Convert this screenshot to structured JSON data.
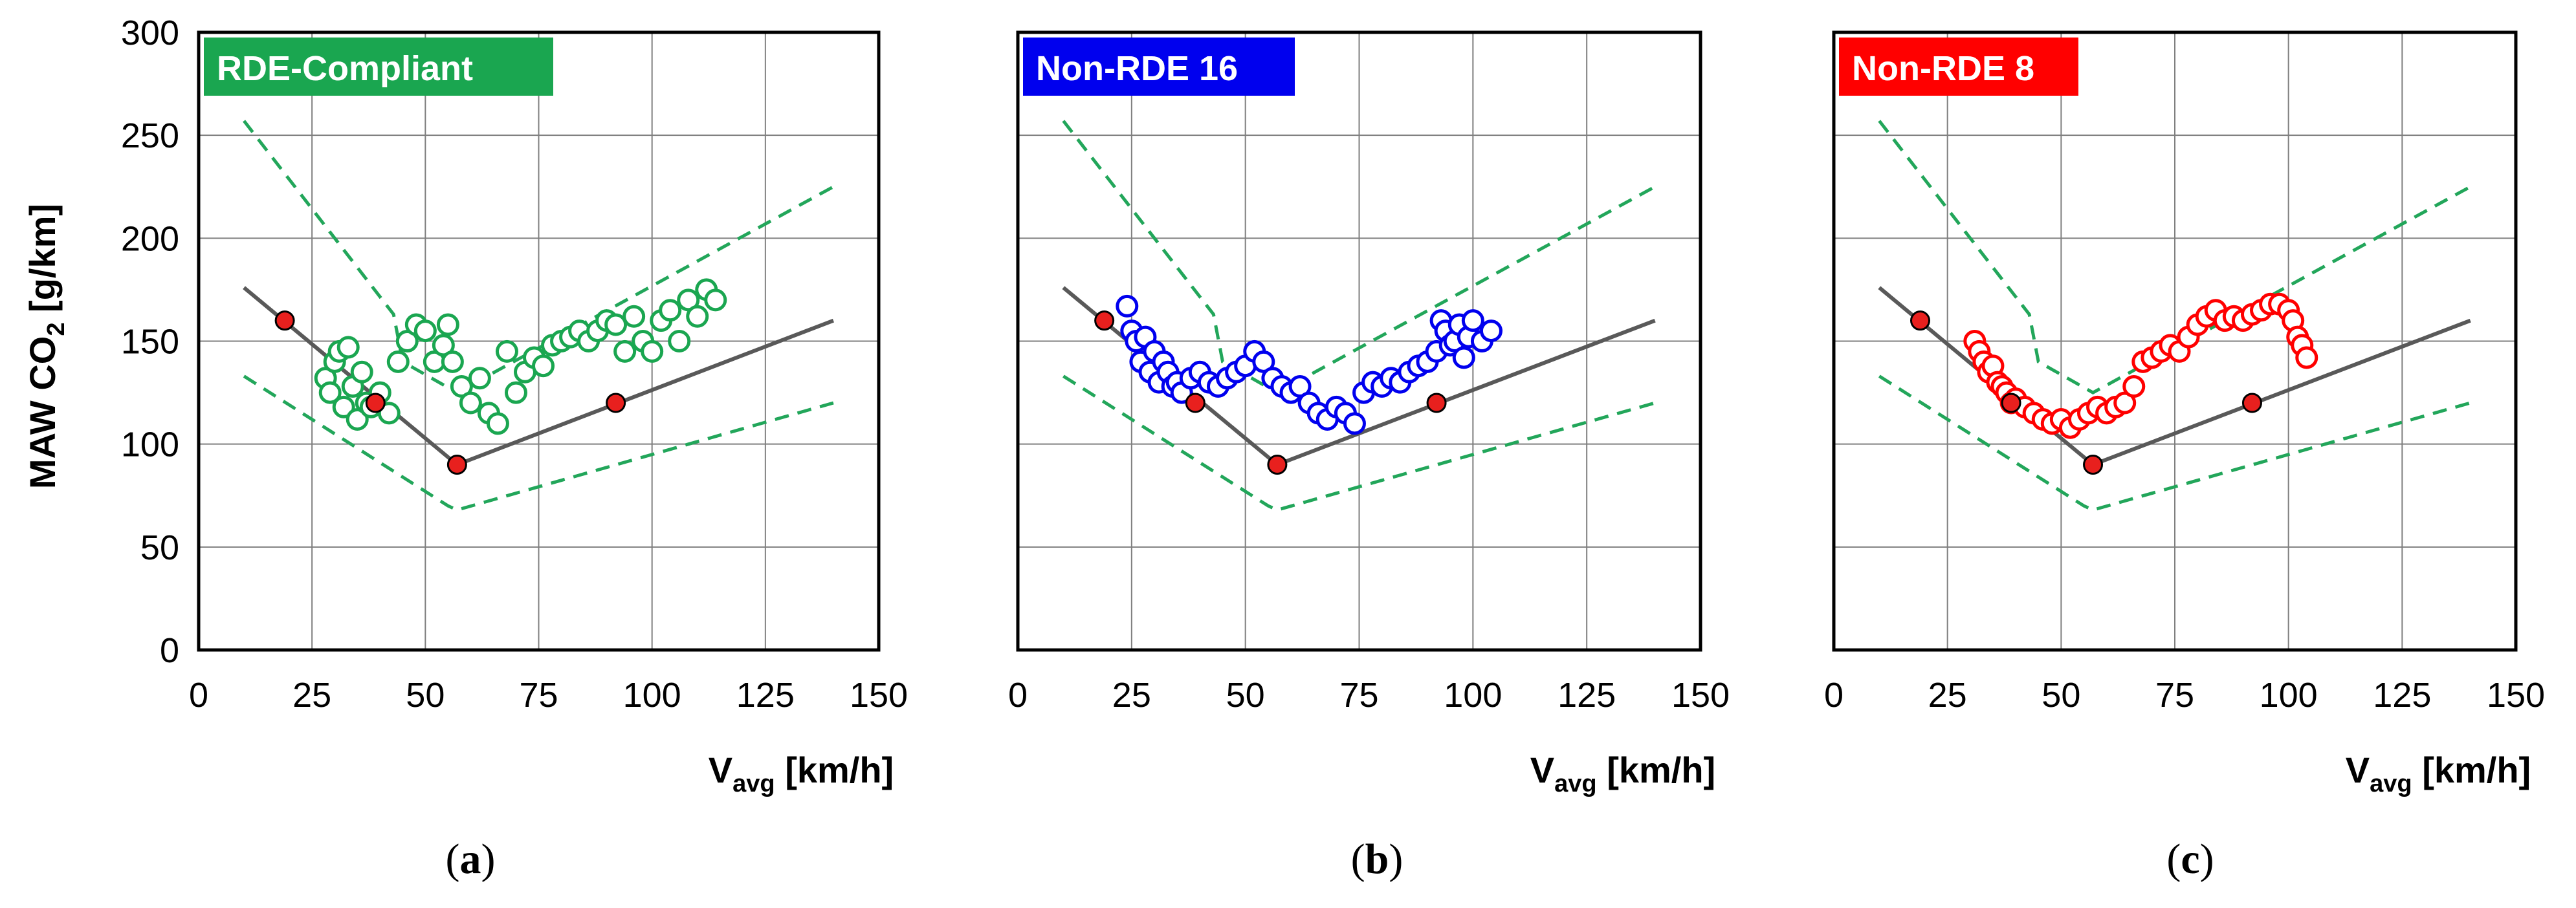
{
  "colors": {
    "reference_line": "#595959",
    "boundary_line": "#22a65a",
    "reference_point": "#e8201e",
    "grid": "#7f7f7f",
    "frame": "#000000"
  },
  "shared_axes": {
    "ylabel_main": "MAW CO",
    "ylabel_sub": "2",
    "ylabel_unit": " [g/km]",
    "xlabel_main": "V",
    "xlabel_sub": "avg",
    "xlabel_unit": " [km/h]",
    "xlim": [
      0,
      150
    ],
    "ylim": [
      0,
      300
    ],
    "xticks": [
      0,
      25,
      50,
      75,
      100,
      125,
      150
    ],
    "yticks": [
      0,
      50,
      100,
      150,
      200,
      250,
      300
    ],
    "grid": "on"
  },
  "chart_data": [
    {
      "type": "scatter",
      "panel": "a",
      "caption_open": "(",
      "caption_letter": "a",
      "caption_close": ")",
      "badge_label": "RDE-Compliant",
      "badge_color": "#1aa650",
      "measured_series": {
        "name": "RDE-Compliant",
        "color": "#1aa650",
        "x": [
          28,
          29,
          30,
          31,
          32,
          33,
          34,
          35,
          36,
          37,
          38,
          40,
          42,
          44,
          46,
          48,
          50,
          52,
          54,
          55,
          56,
          58,
          60,
          62,
          64,
          66,
          68,
          70,
          72,
          74,
          76,
          78,
          80,
          82,
          84,
          86,
          88,
          90,
          92,
          94,
          96,
          98,
          100,
          102,
          104,
          106,
          108,
          110,
          112,
          114
        ],
        "y": [
          132,
          125,
          140,
          145,
          118,
          147,
          128,
          112,
          135,
          120,
          118,
          125,
          115,
          140,
          150,
          158,
          155,
          140,
          148,
          158,
          140,
          128,
          120,
          132,
          115,
          110,
          145,
          125,
          135,
          142,
          138,
          148,
          150,
          152,
          155,
          150,
          155,
          160,
          158,
          145,
          162,
          150,
          145,
          160,
          165,
          150,
          170,
          162,
          175,
          170
        ]
      },
      "reference_line": {
        "x": [
          10,
          57,
          140
        ],
        "y": [
          176,
          90,
          160
        ]
      },
      "reference_points": {
        "x": [
          19,
          39,
          57,
          92
        ],
        "y": [
          160,
          120,
          90,
          120
        ]
      },
      "upper_boundary": {
        "x": [
          10,
          43,
          45,
          57,
          140
        ],
        "y": [
          257,
          163,
          140,
          125,
          225
        ]
      },
      "lower_boundary": {
        "x": [
          10,
          55,
          57,
          140
        ],
        "y": [
          133,
          70,
          68,
          120
        ]
      }
    },
    {
      "type": "scatter",
      "panel": "b",
      "caption_open": "(",
      "caption_letter": "b",
      "caption_close": ")",
      "badge_label": "Non-RDE 16",
      "badge_color": "#0000ee",
      "measured_series": {
        "name": "Non-RDE 16",
        "color": "#0000ee",
        "x": [
          24,
          25,
          26,
          27,
          28,
          29,
          30,
          31,
          32,
          33,
          34,
          35,
          36,
          38,
          40,
          42,
          44,
          46,
          48,
          50,
          52,
          54,
          56,
          58,
          60,
          62,
          64,
          66,
          68,
          70,
          72,
          74,
          76,
          78,
          80,
          82,
          84,
          86,
          88,
          90,
          92,
          93,
          94,
          95,
          96,
          97,
          98,
          99,
          100,
          102,
          104
        ],
        "y": [
          167,
          155,
          150,
          140,
          152,
          135,
          145,
          130,
          140,
          135,
          128,
          130,
          125,
          132,
          135,
          130,
          128,
          132,
          135,
          138,
          145,
          140,
          132,
          128,
          125,
          128,
          120,
          115,
          112,
          118,
          115,
          110,
          125,
          130,
          128,
          132,
          130,
          135,
          138,
          140,
          145,
          160,
          155,
          148,
          150,
          158,
          142,
          152,
          160,
          150,
          155
        ]
      },
      "reference_line": {
        "x": [
          10,
          57,
          140
        ],
        "y": [
          176,
          90,
          160
        ]
      },
      "reference_points": {
        "x": [
          19,
          39,
          57,
          92
        ],
        "y": [
          160,
          120,
          90,
          120
        ]
      },
      "upper_boundary": {
        "x": [
          10,
          43,
          45,
          57,
          140
        ],
        "y": [
          257,
          163,
          140,
          125,
          225
        ]
      },
      "lower_boundary": {
        "x": [
          10,
          55,
          57,
          140
        ],
        "y": [
          133,
          70,
          68,
          120
        ]
      }
    },
    {
      "type": "scatter",
      "panel": "c",
      "caption_open": "(",
      "caption_letter": "c",
      "caption_close": ")",
      "badge_label": "Non-RDE 8",
      "badge_color": "#ff0000",
      "measured_series": {
        "name": "Non-RDE 8",
        "color": "#ff0000",
        "x": [
          31,
          32,
          33,
          34,
          35,
          36,
          37,
          38,
          39,
          40,
          42,
          44,
          46,
          48,
          50,
          52,
          54,
          56,
          58,
          60,
          62,
          64,
          66,
          68,
          70,
          72,
          74,
          76,
          78,
          80,
          82,
          84,
          86,
          88,
          90,
          92,
          94,
          96,
          98,
          100,
          101,
          102,
          103,
          104
        ],
        "y": [
          150,
          145,
          140,
          135,
          138,
          130,
          128,
          125,
          120,
          122,
          118,
          115,
          112,
          110,
          112,
          108,
          112,
          115,
          118,
          115,
          118,
          120,
          128,
          140,
          142,
          145,
          148,
          145,
          152,
          158,
          162,
          165,
          160,
          162,
          160,
          163,
          165,
          168,
          168,
          165,
          160,
          152,
          148,
          142
        ]
      },
      "reference_line": {
        "x": [
          10,
          57,
          140
        ],
        "y": [
          176,
          90,
          160
        ]
      },
      "reference_points": {
        "x": [
          19,
          39,
          57,
          92
        ],
        "y": [
          160,
          120,
          90,
          120
        ]
      },
      "upper_boundary": {
        "x": [
          10,
          43,
          45,
          57,
          140
        ],
        "y": [
          257,
          163,
          140,
          125,
          225
        ]
      },
      "lower_boundary": {
        "x": [
          10,
          55,
          57,
          140
        ],
        "y": [
          133,
          70,
          68,
          120
        ]
      }
    }
  ]
}
